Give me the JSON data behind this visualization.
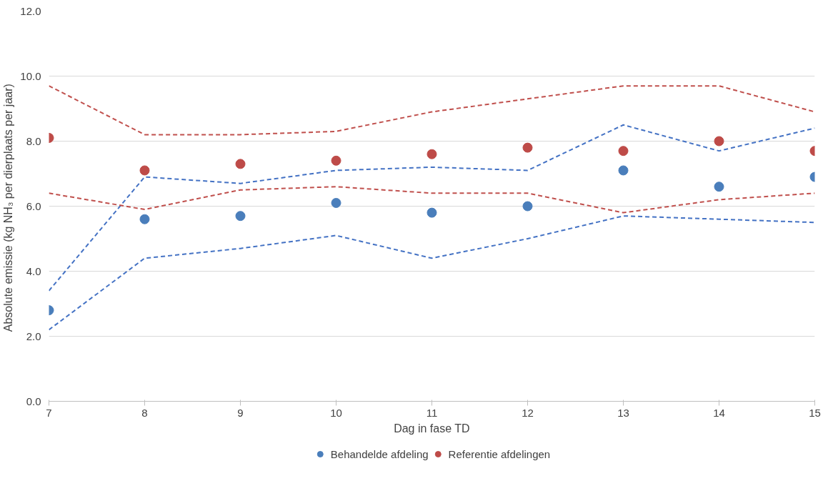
{
  "chart_data": {
    "type": "scatter",
    "xlabel": "Dag in fase TD",
    "ylabel": "Absolute  emissie (kg NH₃ per dierplaats per jaar)",
    "x": [
      7,
      8,
      9,
      10,
      11,
      12,
      13,
      14,
      15
    ],
    "xlim": [
      7,
      15
    ],
    "xticks": [
      7,
      8,
      9,
      10,
      11,
      12,
      13,
      14,
      15
    ],
    "ylim": [
      0,
      12
    ],
    "yticks": [
      {
        "value": 0,
        "label": "0.0"
      },
      {
        "value": 2,
        "label": "2.0"
      },
      {
        "value": 4,
        "label": "4.0"
      },
      {
        "value": 6,
        "label": "6.0"
      },
      {
        "value": 8,
        "label": "8.0"
      },
      {
        "value": 10,
        "label": "10.0"
      },
      {
        "value": 12,
        "label": "12.0"
      }
    ],
    "grid": "y",
    "legend": "bottom",
    "series": [
      {
        "type": "line",
        "color": "#4472c4",
        "line_style": "dashed",
        "marker": "none",
        "values": [
          3.4,
          6.9,
          6.7,
          7.1,
          7.2,
          7.1,
          8.5,
          7.7,
          8.4
        ]
      },
      {
        "type": "line",
        "color": "#4472c4",
        "line_style": "dashed",
        "marker": "none",
        "values": [
          2.2,
          4.4,
          4.7,
          5.1,
          4.4,
          5.0,
          5.7,
          5.6,
          5.5
        ]
      },
      {
        "type": "line",
        "color": "#c0504d",
        "line_style": "dashed",
        "marker": "none",
        "values": [
          9.7,
          8.2,
          8.2,
          8.3,
          8.9,
          9.3,
          9.7,
          9.7,
          8.9
        ]
      },
      {
        "type": "line",
        "color": "#c0504d",
        "line_style": "dashed",
        "marker": "none",
        "values": [
          6.4,
          5.9,
          6.5,
          6.6,
          6.4,
          6.4,
          5.8,
          6.2,
          6.4
        ]
      },
      {
        "name": "Behandelde afdeling",
        "color": "#4a7ebb",
        "marker": "circle",
        "values": [
          2.8,
          5.6,
          5.7,
          6.1,
          5.8,
          6.0,
          7.1,
          6.6,
          6.9
        ]
      },
      {
        "name": "Referentie afdelingen",
        "color": "#be4b48",
        "marker": "circle",
        "values": [
          8.1,
          7.1,
          7.3,
          7.4,
          7.6,
          7.8,
          7.7,
          8.0,
          7.7
        ]
      }
    ]
  }
}
